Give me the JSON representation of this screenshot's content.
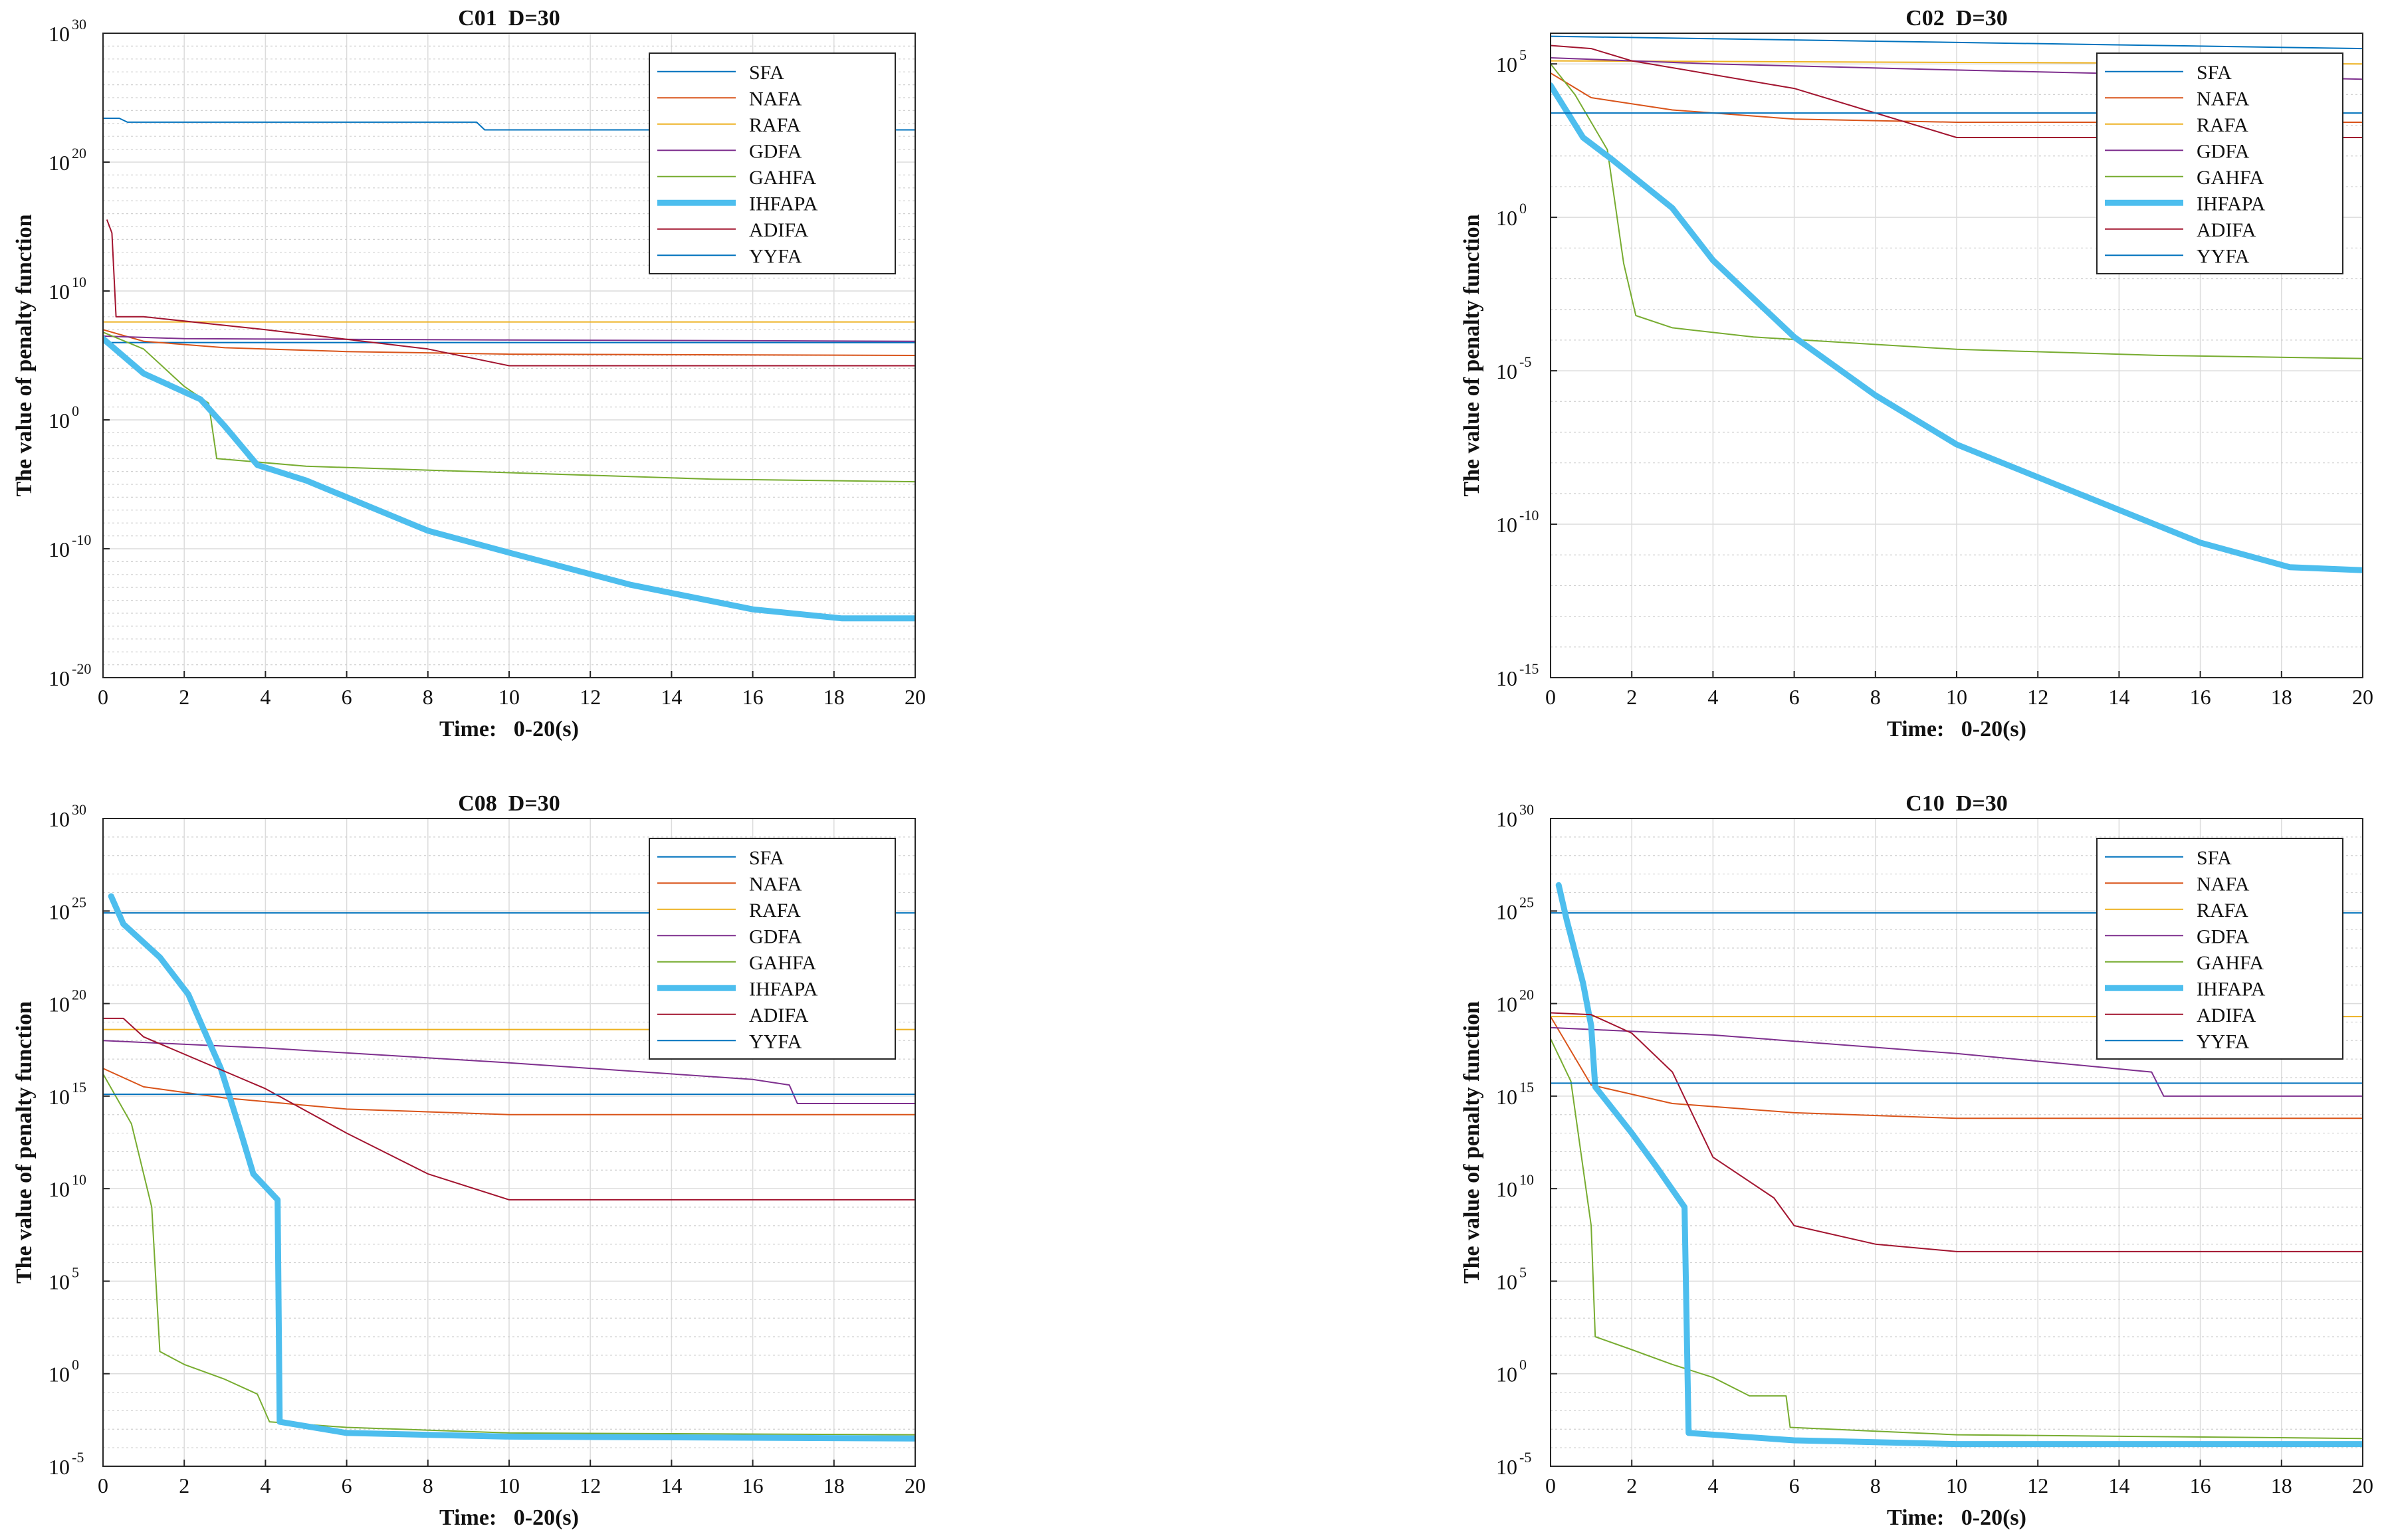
{
  "figure": {
    "grid": "2x2"
  },
  "chart_data": [
    {
      "type": "line",
      "title": "C01  D=30",
      "xlabel": "Time:   0-20(s)",
      "ylabel": "The value of penalty function",
      "yscale": "log",
      "xlim": [
        0,
        20
      ],
      "ylim_exp": [
        -20,
        30
      ],
      "x_ticks": [
        0,
        2,
        4,
        6,
        8,
        10,
        12,
        14,
        16,
        18,
        20
      ],
      "y_tick_exps": [
        -20,
        -10,
        0,
        10,
        20,
        30
      ],
      "legend_position": "top-right",
      "series": [
        {
          "name": "SFA",
          "color": "#0072BD",
          "width": 2,
          "log10": [
            [
              0,
              6
            ],
            [
              20,
              6
            ]
          ]
        },
        {
          "name": "NAFA",
          "color": "#D95319",
          "width": 2,
          "log10": [
            [
              0,
              7
            ],
            [
              1,
              6.1
            ],
            [
              3,
              5.6
            ],
            [
              6,
              5.3
            ],
            [
              10,
              5.1
            ],
            [
              20,
              5
            ]
          ]
        },
        {
          "name": "RAFA",
          "color": "#EDB120",
          "width": 2,
          "log10": [
            [
              0,
              7.6
            ],
            [
              20,
              7.6
            ]
          ]
        },
        {
          "name": "GDFA",
          "color": "#7E2F8E",
          "width": 2,
          "log10": [
            [
              0,
              6.5
            ],
            [
              2,
              6.3
            ],
            [
              10,
              6.2
            ],
            [
              20,
              6.1
            ]
          ]
        },
        {
          "name": "GAHFA",
          "color": "#77AC30",
          "width": 2,
          "log10": [
            [
              0,
              6.8
            ],
            [
              1,
              5.5
            ],
            [
              2,
              2.6
            ],
            [
              2.6,
              1.3
            ],
            [
              2.8,
              -3
            ],
            [
              5,
              -3.6
            ],
            [
              10,
              -4.1
            ],
            [
              15,
              -4.6
            ],
            [
              20,
              -4.8
            ]
          ]
        },
        {
          "name": "IHFAPA",
          "color": "#4DBEEE",
          "width": 9,
          "log10": [
            [
              0,
              6.3
            ],
            [
              1,
              3.6
            ],
            [
              2.4,
              1.6
            ],
            [
              3,
              -0.5
            ],
            [
              3.8,
              -3.5
            ],
            [
              5,
              -4.7
            ],
            [
              8,
              -8.6
            ],
            [
              10,
              -10.3
            ],
            [
              13,
              -12.8
            ],
            [
              16,
              -14.7
            ],
            [
              18.2,
              -15.4
            ],
            [
              20,
              -15.4
            ]
          ]
        },
        {
          "name": "ADIFA",
          "color": "#A2142F",
          "width": 2,
          "log10": [
            [
              0.1,
              15.5
            ],
            [
              0.22,
              14.5
            ],
            [
              0.32,
              8
            ],
            [
              1,
              8
            ],
            [
              4,
              7
            ],
            [
              8,
              5.5
            ],
            [
              10,
              4.2
            ],
            [
              20,
              4.2
            ]
          ]
        },
        {
          "name": "YYFA",
          "color": "#0072BD",
          "width": 2,
          "log10": [
            [
              0,
              23.4
            ],
            [
              0.4,
              23.4
            ],
            [
              0.6,
              23.1
            ],
            [
              9.2,
              23.1
            ],
            [
              9.4,
              22.5
            ],
            [
              20,
              22.5
            ]
          ]
        }
      ]
    },
    {
      "type": "line",
      "title": "C02  D=30",
      "xlabel": "Time:   0-20(s)",
      "ylabel": "The value of penalty function",
      "yscale": "log",
      "xlim": [
        0,
        20
      ],
      "ylim_exp": [
        -15,
        6
      ],
      "x_ticks": [
        0,
        2,
        4,
        6,
        8,
        10,
        12,
        14,
        16,
        18,
        20
      ],
      "y_tick_exps": [
        -15,
        -10,
        -5,
        0,
        5
      ],
      "legend_position": "top-right",
      "series": [
        {
          "name": "SFA",
          "color": "#0072BD",
          "width": 2,
          "log10": [
            [
              0,
              5.9
            ],
            [
              20,
              5.5
            ]
          ]
        },
        {
          "name": "NAFA",
          "color": "#D95319",
          "width": 2,
          "log10": [
            [
              0,
              4.7
            ],
            [
              1,
              3.9
            ],
            [
              3,
              3.5
            ],
            [
              6,
              3.2
            ],
            [
              10,
              3.1
            ],
            [
              20,
              3.1
            ]
          ]
        },
        {
          "name": "RAFA",
          "color": "#EDB120",
          "width": 2,
          "log10": [
            [
              0,
              5.1
            ],
            [
              20,
              5
            ]
          ]
        },
        {
          "name": "GDFA",
          "color": "#7E2F8E",
          "width": 2,
          "log10": [
            [
              0,
              5.2
            ],
            [
              4,
              5
            ],
            [
              10,
              4.8
            ],
            [
              20,
              4.5
            ]
          ]
        },
        {
          "name": "GAHFA",
          "color": "#77AC30",
          "width": 2,
          "log10": [
            [
              0,
              5
            ],
            [
              0.6,
              4
            ],
            [
              1.4,
              2.2
            ],
            [
              1.8,
              -1.5
            ],
            [
              2.1,
              -3.2
            ],
            [
              3,
              -3.6
            ],
            [
              5,
              -3.9
            ],
            [
              10,
              -4.3
            ],
            [
              15,
              -4.5
            ],
            [
              20,
              -4.6
            ]
          ]
        },
        {
          "name": "IHFAPA",
          "color": "#4DBEEE",
          "width": 9,
          "log10": [
            [
              0,
              4.3
            ],
            [
              0.8,
              2.6
            ],
            [
              1.5,
              1.9
            ],
            [
              3,
              0.3
            ],
            [
              4,
              -1.4
            ],
            [
              4.8,
              -2.4
            ],
            [
              6,
              -3.9
            ],
            [
              8,
              -5.8
            ],
            [
              10,
              -7.4
            ],
            [
              13,
              -9
            ],
            [
              16,
              -10.6
            ],
            [
              18.2,
              -11.4
            ],
            [
              20,
              -11.5
            ]
          ]
        },
        {
          "name": "ADIFA",
          "color": "#A2142F",
          "width": 2,
          "log10": [
            [
              0,
              5.6
            ],
            [
              1,
              5.5
            ],
            [
              2,
              5.1
            ],
            [
              6,
              4.2
            ],
            [
              10,
              2.6
            ],
            [
              20,
              2.6
            ]
          ]
        },
        {
          "name": "YYFA",
          "color": "#0072BD",
          "width": 2,
          "log10": [
            [
              0,
              3.4
            ],
            [
              20,
              3.4
            ]
          ]
        }
      ]
    },
    {
      "type": "line",
      "title": "C08  D=30",
      "xlabel": "Time:   0-20(s)",
      "ylabel": "The value of penalty function",
      "yscale": "log",
      "xlim": [
        0,
        20
      ],
      "ylim_exp": [
        -5,
        30
      ],
      "x_ticks": [
        0,
        2,
        4,
        6,
        8,
        10,
        12,
        14,
        16,
        18,
        20
      ],
      "y_tick_exps": [
        -5,
        0,
        5,
        10,
        15,
        20,
        25,
        30
      ],
      "legend_position": "top-right",
      "series": [
        {
          "name": "SFA",
          "color": "#0072BD",
          "width": 2,
          "log10": [
            [
              0,
              24.9
            ],
            [
              20,
              24.9
            ]
          ]
        },
        {
          "name": "NAFA",
          "color": "#D95319",
          "width": 2,
          "log10": [
            [
              0,
              16.5
            ],
            [
              1,
              15.5
            ],
            [
              3,
              14.9
            ],
            [
              6,
              14.3
            ],
            [
              10,
              14
            ],
            [
              20,
              14
            ]
          ]
        },
        {
          "name": "RAFA",
          "color": "#EDB120",
          "width": 2,
          "log10": [
            [
              0,
              18.6
            ],
            [
              20,
              18.6
            ]
          ]
        },
        {
          "name": "GDFA",
          "color": "#7E2F8E",
          "width": 2,
          "log10": [
            [
              0,
              18
            ],
            [
              4,
              17.6
            ],
            [
              10,
              16.8
            ],
            [
              16,
              15.9
            ],
            [
              16.9,
              15.6
            ],
            [
              17.1,
              14.6
            ],
            [
              20,
              14.6
            ]
          ]
        },
        {
          "name": "GAHFA",
          "color": "#77AC30",
          "width": 2,
          "log10": [
            [
              0,
              16.2
            ],
            [
              0.7,
              13.5
            ],
            [
              1.2,
              9
            ],
            [
              1.4,
              1.2
            ],
            [
              2,
              0.5
            ],
            [
              3,
              -0.3
            ],
            [
              3.8,
              -1.1
            ],
            [
              4.1,
              -2.6
            ],
            [
              6,
              -2.9
            ],
            [
              10,
              -3.2
            ],
            [
              20,
              -3.3
            ]
          ]
        },
        {
          "name": "IHFAPA",
          "color": "#4DBEEE",
          "width": 9,
          "log10": [
            [
              0.2,
              25.8
            ],
            [
              0.5,
              24.3
            ],
            [
              1.4,
              22.5
            ],
            [
              2.1,
              20.5
            ],
            [
              2.9,
              16.5
            ],
            [
              3.4,
              13
            ],
            [
              3.7,
              10.8
            ],
            [
              4.3,
              9.4
            ],
            [
              4.35,
              -2.6
            ],
            [
              6,
              -3.2
            ],
            [
              10,
              -3.4
            ],
            [
              20,
              -3.5
            ]
          ]
        },
        {
          "name": "ADIFA",
          "color": "#A2142F",
          "width": 2,
          "log10": [
            [
              0,
              19.2
            ],
            [
              0.5,
              19.2
            ],
            [
              1,
              18.2
            ],
            [
              4,
              15.4
            ],
            [
              6,
              13
            ],
            [
              8,
              10.8
            ],
            [
              10,
              9.4
            ],
            [
              20,
              9.4
            ]
          ]
        },
        {
          "name": "YYFA",
          "color": "#0072BD",
          "width": 2,
          "log10": [
            [
              0,
              15.1
            ],
            [
              20,
              15.1
            ]
          ]
        }
      ]
    },
    {
      "type": "line",
      "title": "C10  D=30",
      "xlabel": "Time:   0-20(s)",
      "ylabel": "The value of penalty function",
      "yscale": "log",
      "xlim": [
        0,
        20
      ],
      "ylim_exp": [
        -5,
        30
      ],
      "x_ticks": [
        0,
        2,
        4,
        6,
        8,
        10,
        12,
        14,
        16,
        18,
        20
      ],
      "y_tick_exps": [
        -5,
        0,
        5,
        10,
        15,
        20,
        25,
        30
      ],
      "legend_position": "top-right",
      "series": [
        {
          "name": "SFA",
          "color": "#0072BD",
          "width": 2,
          "log10": [
            [
              0,
              24.9
            ],
            [
              20,
              24.9
            ]
          ]
        },
        {
          "name": "NAFA",
          "color": "#D95319",
          "width": 2,
          "log10": [
            [
              0,
              19.3
            ],
            [
              1,
              15.6
            ],
            [
              3,
              14.6
            ],
            [
              6,
              14.1
            ],
            [
              10,
              13.8
            ],
            [
              20,
              13.8
            ]
          ]
        },
        {
          "name": "RAFA",
          "color": "#EDB120",
          "width": 2,
          "log10": [
            [
              0,
              19.3
            ],
            [
              20,
              19.3
            ]
          ]
        },
        {
          "name": "GDFA",
          "color": "#7E2F8E",
          "width": 2,
          "log10": [
            [
              0,
              18.7
            ],
            [
              4,
              18.3
            ],
            [
              10,
              17.3
            ],
            [
              14.8,
              16.3
            ],
            [
              15.1,
              15
            ],
            [
              20,
              15
            ]
          ]
        },
        {
          "name": "GAHFA",
          "color": "#77AC30",
          "width": 2,
          "log10": [
            [
              0,
              18.1
            ],
            [
              0.5,
              15.8
            ],
            [
              1,
              8
            ],
            [
              1.1,
              2
            ],
            [
              2,
              1.3
            ],
            [
              3,
              0.5
            ],
            [
              4,
              -0.2
            ],
            [
              4.9,
              -1.2
            ],
            [
              5.8,
              -1.2
            ],
            [
              5.9,
              -2.9
            ],
            [
              10,
              -3.3
            ],
            [
              20,
              -3.5
            ]
          ]
        },
        {
          "name": "IHFAPA",
          "color": "#4DBEEE",
          "width": 9,
          "log10": [
            [
              0.2,
              26.4
            ],
            [
              0.4,
              24.5
            ],
            [
              0.8,
              21.1
            ],
            [
              1,
              18.8
            ],
            [
              1.1,
              15.5
            ],
            [
              2,
              13
            ],
            [
              2.6,
              11.2
            ],
            [
              3.3,
              9
            ],
            [
              3.4,
              -3.2
            ],
            [
              6,
              -3.6
            ],
            [
              10,
              -3.8
            ],
            [
              20,
              -3.8
            ]
          ]
        },
        {
          "name": "ADIFA",
          "color": "#A2142F",
          "width": 2,
          "log10": [
            [
              0,
              19.5
            ],
            [
              1,
              19.4
            ],
            [
              2,
              18.4
            ],
            [
              3,
              16.3
            ],
            [
              3.5,
              14
            ],
            [
              4,
              11.7
            ],
            [
              5.5,
              9.5
            ],
            [
              6,
              8
            ],
            [
              8,
              7
            ],
            [
              10,
              6.6
            ],
            [
              20,
              6.6
            ]
          ]
        },
        {
          "name": "YYFA",
          "color": "#0072BD",
          "width": 2,
          "log10": [
            [
              0,
              15.7
            ],
            [
              20,
              15.7
            ]
          ]
        }
      ]
    }
  ]
}
